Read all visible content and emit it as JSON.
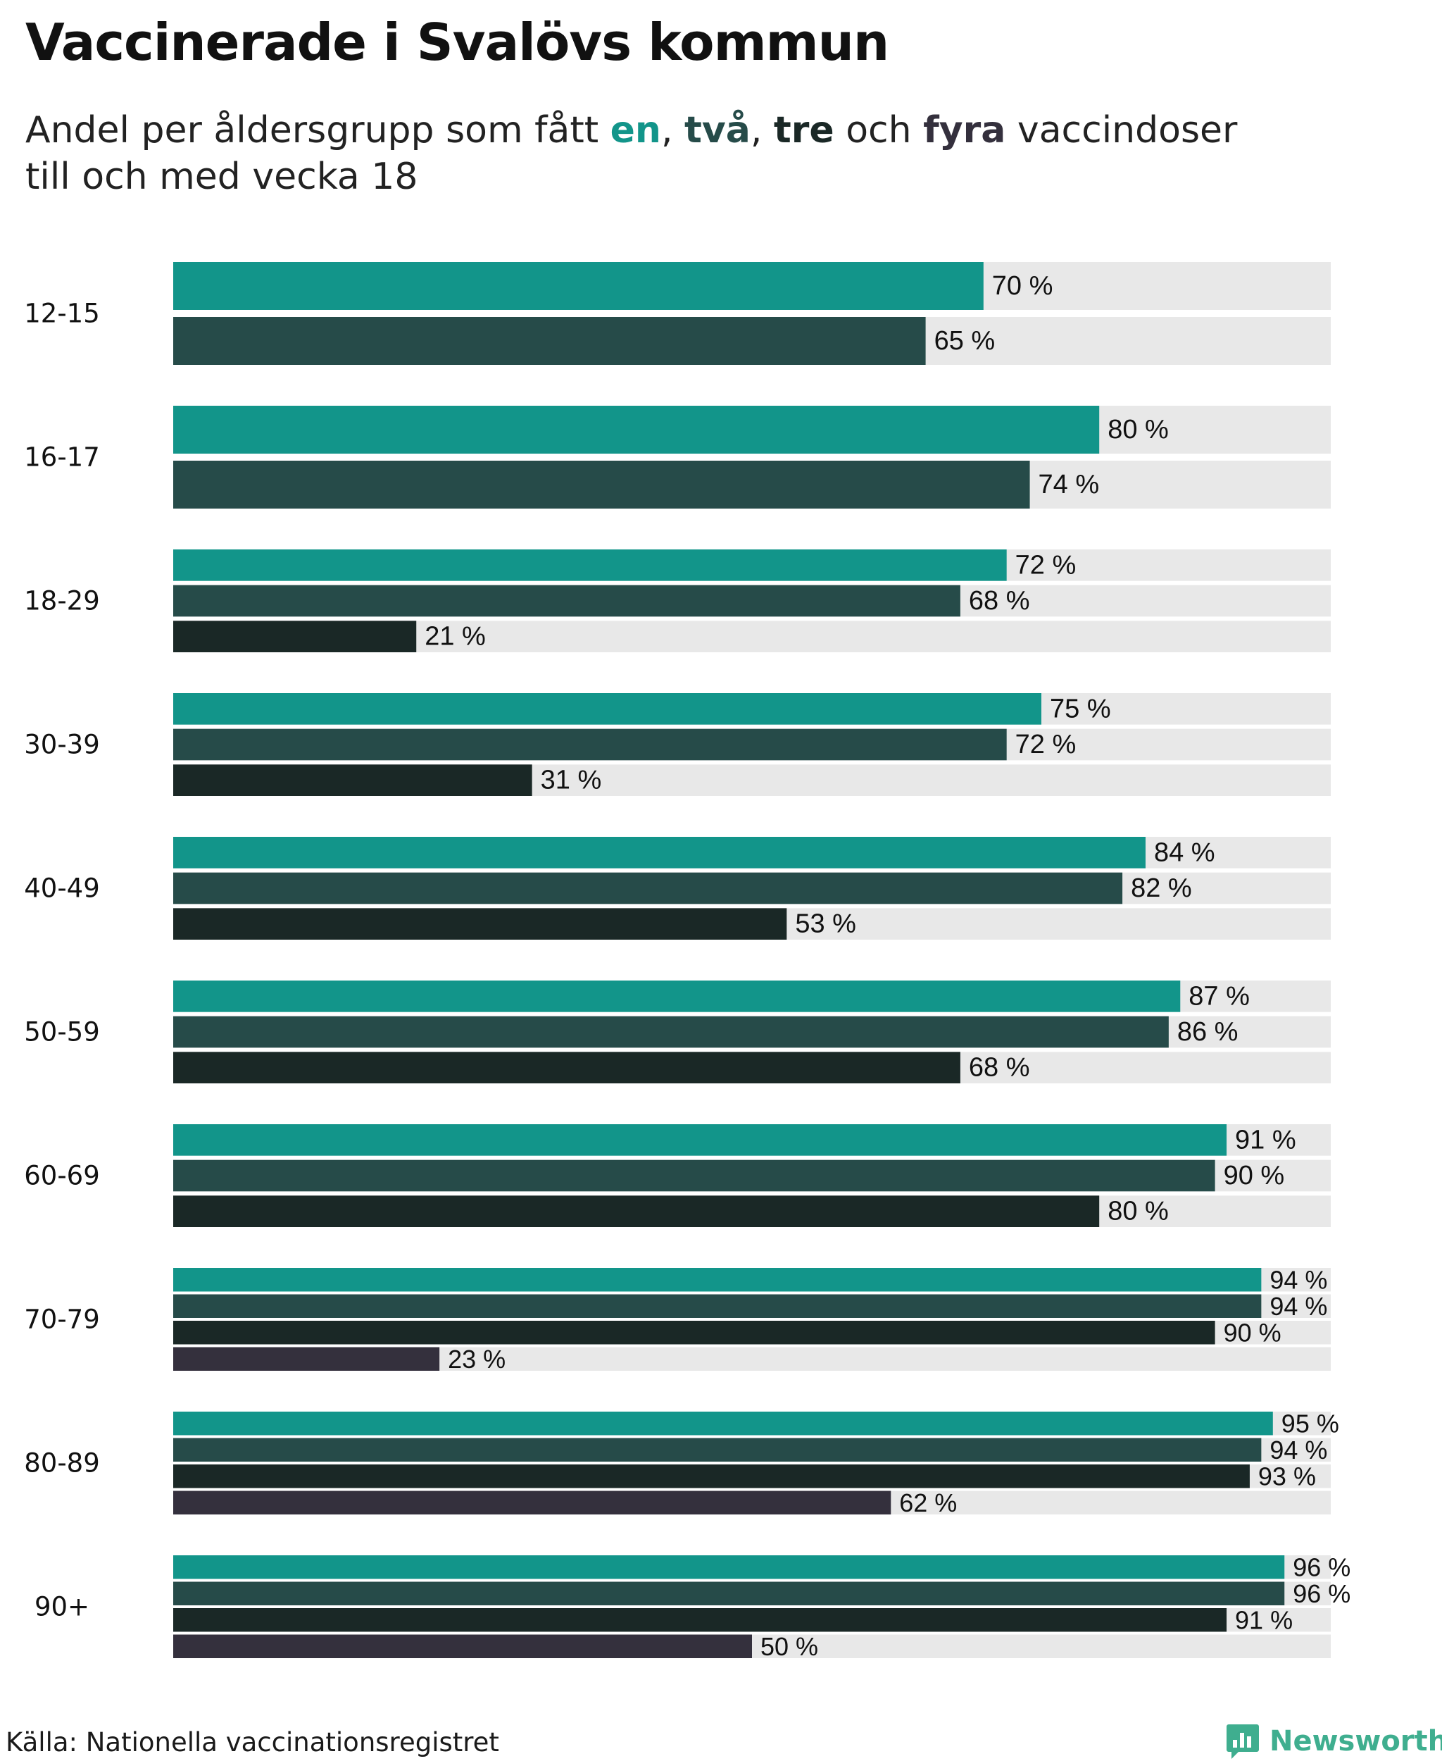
{
  "header": {
    "title": "Vaccinerade i Svalövs kommun",
    "subtitle_prefix": "Andel per åldersgrupp som fått ",
    "key_one": "en",
    "sep_1": ", ",
    "key_two": "två",
    "sep_2": ", ",
    "key_three": "tre",
    "sep_3": " och ",
    "key_four": "fyra",
    "subtitle_suffix": " vaccindoser",
    "subtitle_line2": "till och med vecka 18"
  },
  "footer": {
    "source": "Källa: Nationella vaccinationsregistret",
    "brand": "Newsworthy",
    "brand_icon": "bar-chart-speech-bubble-icon"
  },
  "colors": {
    "dose1": "#12958a",
    "dose2": "#264b49",
    "dose3": "#1a2826",
    "dose4": "#34303d",
    "track": "#e8e8e8",
    "brand": "#3fae8f"
  },
  "chart_data": {
    "type": "bar",
    "orientation": "horizontal",
    "title": "Vaccinerade i Svalövs kommun",
    "subtitle": "Andel per åldersgrupp som fått en, två, tre och fyra vaccindoser till och med vecka 18",
    "xlim": [
      0,
      100
    ],
    "unit": "%",
    "value_suffix": " %",
    "series_names": [
      "en",
      "två",
      "tre",
      "fyra"
    ],
    "groups": [
      {
        "label": "12-15",
        "values": [
          70,
          65
        ]
      },
      {
        "label": "16-17",
        "values": [
          80,
          74
        ]
      },
      {
        "label": "18-29",
        "values": [
          72,
          68,
          21
        ]
      },
      {
        "label": "30-39",
        "values": [
          75,
          72,
          31
        ]
      },
      {
        "label": "40-49",
        "values": [
          84,
          82,
          53
        ]
      },
      {
        "label": "50-59",
        "values": [
          87,
          86,
          68
        ]
      },
      {
        "label": "60-69",
        "values": [
          91,
          90,
          80
        ]
      },
      {
        "label": "70-79",
        "values": [
          94,
          94,
          90,
          23
        ]
      },
      {
        "label": "80-89",
        "values": [
          95,
          94,
          93,
          62
        ]
      },
      {
        "label": "90+",
        "values": [
          96,
          96,
          91,
          50
        ]
      }
    ]
  }
}
